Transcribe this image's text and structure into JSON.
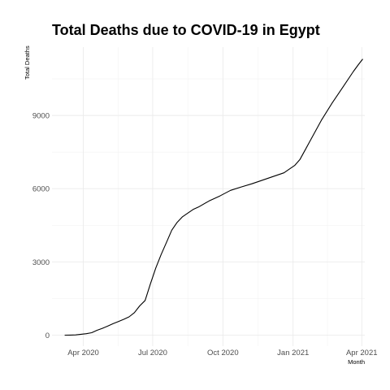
{
  "chart_data": {
    "type": "line",
    "title": "Total Deaths due to COVID-19 in Egypt",
    "xlabel": "Month",
    "ylabel": "Total Deaths",
    "x_ticks": [
      "Apr 2020",
      "Jul 2020",
      "Oct 2020",
      "Jan 2021",
      "Apr 2021"
    ],
    "y_ticks": [
      "0",
      "3000",
      "6000",
      "9000"
    ],
    "ylim": [
      -450,
      11800
    ],
    "xlim": [
      "2020-02-20",
      "2021-04-05"
    ],
    "grid": true,
    "line_color": "#000000",
    "series": [
      {
        "points": [
          [
            "2020-03-08",
            0
          ],
          [
            "2020-03-15",
            2
          ],
          [
            "2020-03-22",
            10
          ],
          [
            "2020-03-29",
            35
          ],
          [
            "2020-04-05",
            60
          ],
          [
            "2020-04-12",
            100
          ],
          [
            "2020-04-19",
            200
          ],
          [
            "2020-04-26",
            280
          ],
          [
            "2020-05-03",
            370
          ],
          [
            "2020-05-10",
            470
          ],
          [
            "2020-05-17",
            560
          ],
          [
            "2020-05-24",
            650
          ],
          [
            "2020-05-31",
            750
          ],
          [
            "2020-06-07",
            920
          ],
          [
            "2020-06-14",
            1200
          ],
          [
            "2020-06-21",
            1420
          ],
          [
            "2020-06-28",
            2100
          ],
          [
            "2020-07-05",
            2750
          ],
          [
            "2020-07-12",
            3300
          ],
          [
            "2020-07-19",
            3800
          ],
          [
            "2020-07-26",
            4300
          ],
          [
            "2020-08-02",
            4620
          ],
          [
            "2020-08-09",
            4850
          ],
          [
            "2020-08-16",
            5000
          ],
          [
            "2020-08-23",
            5150
          ],
          [
            "2020-08-30",
            5250
          ],
          [
            "2020-09-13",
            5500
          ],
          [
            "2020-09-27",
            5700
          ],
          [
            "2020-10-11",
            5930
          ],
          [
            "2020-10-25",
            6070
          ],
          [
            "2020-11-08",
            6200
          ],
          [
            "2020-11-22",
            6350
          ],
          [
            "2020-12-06",
            6500
          ],
          [
            "2020-12-20",
            6650
          ],
          [
            "2020-12-27",
            6800
          ],
          [
            "2021-01-03",
            6950
          ],
          [
            "2021-01-10",
            7200
          ],
          [
            "2021-01-17",
            7600
          ],
          [
            "2021-01-24",
            8000
          ],
          [
            "2021-02-07",
            8800
          ],
          [
            "2021-02-21",
            9500
          ],
          [
            "2021-03-07",
            10150
          ],
          [
            "2021-03-21",
            10800
          ],
          [
            "2021-03-28",
            11100
          ],
          [
            "2021-04-02",
            11300
          ]
        ]
      }
    ]
  }
}
